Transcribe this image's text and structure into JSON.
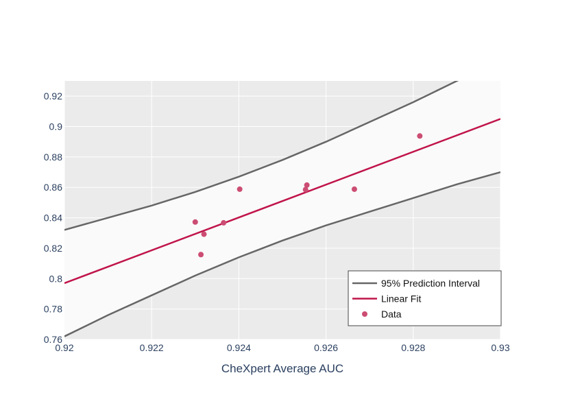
{
  "chart_data": {
    "type": "scatter",
    "title": "",
    "xlabel": "CheXpert Average AUC",
    "ylabel": "",
    "xlim": [
      0.92,
      0.93
    ],
    "ylim": [
      0.76,
      0.93
    ],
    "x_ticks": [
      "0.92",
      "0.922",
      "0.924",
      "0.926",
      "0.928",
      "0.93"
    ],
    "y_ticks": [
      "0.76",
      "0.78",
      "0.8",
      "0.82",
      "0.84",
      "0.86",
      "0.88",
      "0.9",
      "0.92"
    ],
    "grid": true,
    "legend_position": "bottom-right",
    "series": [
      {
        "name": "95% Prediction Interval",
        "kind": "band",
        "color": "#666666",
        "fill": "#fafafa",
        "x": [
          0.92,
          0.921,
          0.922,
          0.923,
          0.924,
          0.925,
          0.926,
          0.927,
          0.928,
          0.929,
          0.93
        ],
        "upper": [
          0.832,
          0.84,
          0.848,
          0.857,
          0.867,
          0.878,
          0.89,
          0.903,
          0.916,
          0.93,
          0.944
        ],
        "lower": [
          0.762,
          0.776,
          0.789,
          0.802,
          0.814,
          0.825,
          0.835,
          0.844,
          0.853,
          0.862,
          0.87
        ]
      },
      {
        "name": "Linear Fit",
        "kind": "line",
        "color": "#c0144a",
        "x": [
          0.92,
          0.93
        ],
        "y": [
          0.797,
          0.905
        ]
      },
      {
        "name": "Data",
        "kind": "markers",
        "color": "#cc4d73",
        "x": [
          0.923,
          0.92313,
          0.9232,
          0.92365,
          0.92402,
          0.92553,
          0.92556,
          0.92665,
          0.92815
        ],
        "y": [
          0.8372,
          0.8158,
          0.8292,
          0.8367,
          0.8588,
          0.8585,
          0.8615,
          0.8588,
          0.8938
        ]
      }
    ]
  }
}
